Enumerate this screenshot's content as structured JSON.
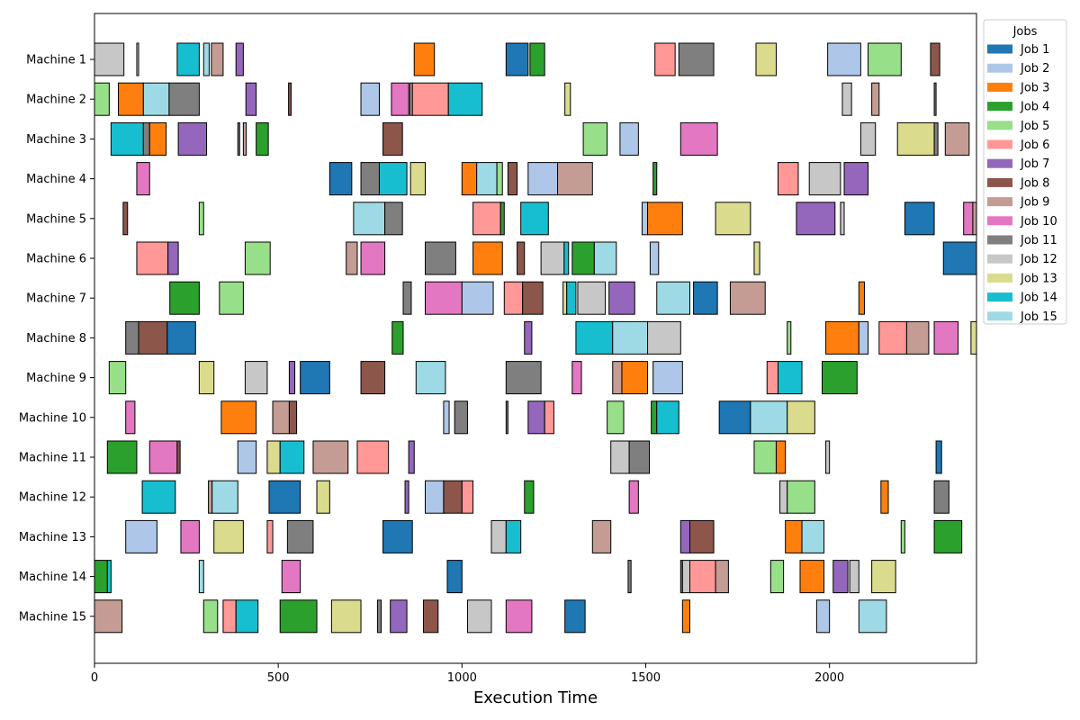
{
  "chart_data": {
    "type": "gantt",
    "xlabel": "Execution Time",
    "ylabel": "",
    "xlim": [
      0,
      2400
    ],
    "xticks": [
      0,
      500,
      1000,
      1500,
      2000
    ],
    "machines": [
      "Machine 1",
      "Machine 2",
      "Machine 3",
      "Machine 4",
      "Machine 5",
      "Machine 6",
      "Machine 7",
      "Machine 8",
      "Machine 9",
      "Machine 10",
      "Machine 11",
      "Machine 12",
      "Machine 13",
      "Machine 14",
      "Machine 15"
    ],
    "legend": {
      "title": "Jobs",
      "placement": "right, top",
      "entries": [
        {
          "job": 1,
          "label": "Job 1",
          "color": "#1f77b4"
        },
        {
          "job": 2,
          "label": "Job 2",
          "color": "#aec7e8"
        },
        {
          "job": 3,
          "label": "Job 3",
          "color": "#ff7f0e"
        },
        {
          "job": 4,
          "label": "Job 4",
          "color": "#2ca02c"
        },
        {
          "job": 5,
          "label": "Job 5",
          "color": "#98df8a"
        },
        {
          "job": 6,
          "label": "Job 6",
          "color": "#ff9896"
        },
        {
          "job": 7,
          "label": "Job 7",
          "color": "#9467bd"
        },
        {
          "job": 8,
          "label": "Job 8",
          "color": "#8c564b"
        },
        {
          "job": 9,
          "label": "Job 9",
          "color": "#c49c94"
        },
        {
          "job": 10,
          "label": "Job 10",
          "color": "#e377c2"
        },
        {
          "job": 11,
          "label": "Job 11",
          "color": "#7f7f7f"
        },
        {
          "job": 12,
          "label": "Job 12",
          "color": "#c7c7c7"
        },
        {
          "job": 13,
          "label": "Job 13",
          "color": "#dbdb8d"
        },
        {
          "job": 14,
          "label": "Job 14",
          "color": "#17becf"
        },
        {
          "job": 15,
          "label": "Job 15",
          "color": "#9edae5"
        }
      ]
    },
    "tasks": [
      [
        [
          12,
          0,
          80
        ],
        [
          12,
          115,
          120
        ],
        [
          14,
          225,
          285
        ],
        [
          15,
          297,
          312
        ],
        [
          9,
          318,
          350
        ],
        [
          7,
          385,
          405
        ],
        [
          3,
          870,
          925
        ],
        [
          1,
          1120,
          1180
        ],
        [
          4,
          1185,
          1225
        ],
        [
          6,
          1525,
          1580
        ],
        [
          11,
          1590,
          1685
        ],
        [
          13,
          1800,
          1855
        ],
        [
          2,
          1995,
          2085
        ],
        [
          5,
          2105,
          2195
        ],
        [
          8,
          2275,
          2300
        ]
      ],
      [
        [
          5,
          0,
          40
        ],
        [
          3,
          65,
          133
        ],
        [
          15,
          133,
          203
        ],
        [
          11,
          203,
          285
        ],
        [
          7,
          412,
          440
        ],
        [
          8,
          528,
          535
        ],
        [
          2,
          725,
          775
        ],
        [
          10,
          808,
          855
        ],
        [
          9,
          858,
          865
        ],
        [
          6,
          865,
          963
        ],
        [
          14,
          963,
          1055
        ],
        [
          13,
          1280,
          1295
        ],
        [
          12,
          2035,
          2060
        ],
        [
          9,
          2115,
          2135
        ],
        [
          11,
          2285,
          2290
        ]
      ],
      [
        [
          14,
          45,
          133
        ],
        [
          11,
          133,
          150
        ],
        [
          3,
          150,
          195
        ],
        [
          7,
          228,
          305
        ],
        [
          11,
          390,
          395
        ],
        [
          9,
          405,
          413
        ],
        [
          4,
          440,
          473
        ],
        [
          8,
          785,
          838
        ],
        [
          5,
          1330,
          1395
        ],
        [
          2,
          1430,
          1480
        ],
        [
          10,
          1595,
          1695
        ],
        [
          12,
          2085,
          2125
        ],
        [
          13,
          2185,
          2285
        ],
        [
          11,
          2285,
          2295
        ],
        [
          9,
          2315,
          2380
        ]
      ],
      [
        [
          10,
          115,
          150
        ],
        [
          1,
          640,
          700
        ],
        [
          11,
          725,
          775
        ],
        [
          14,
          775,
          850
        ],
        [
          13,
          860,
          900
        ],
        [
          3,
          1000,
          1040
        ],
        [
          15,
          1040,
          1095
        ],
        [
          5,
          1095,
          1110
        ],
        [
          8,
          1125,
          1150
        ],
        [
          2,
          1180,
          1260
        ],
        [
          9,
          1260,
          1355
        ],
        [
          4,
          1520,
          1530
        ],
        [
          6,
          1860,
          1915
        ],
        [
          12,
          1945,
          2030
        ],
        [
          7,
          2040,
          2105
        ]
      ],
      [
        [
          8,
          78,
          90
        ],
        [
          5,
          285,
          297
        ],
        [
          15,
          705,
          790
        ],
        [
          11,
          790,
          838
        ],
        [
          6,
          1030,
          1105
        ],
        [
          4,
          1105,
          1115
        ],
        [
          14,
          1160,
          1235
        ],
        [
          2,
          1490,
          1505
        ],
        [
          3,
          1505,
          1600
        ],
        [
          13,
          1690,
          1785
        ],
        [
          7,
          1910,
          2015
        ],
        [
          12,
          2030,
          2040
        ],
        [
          1,
          2205,
          2285
        ],
        [
          10,
          2365,
          2390
        ],
        [
          9,
          2390,
          2400
        ]
      ],
      [
        [
          6,
          115,
          200
        ],
        [
          7,
          200,
          228
        ],
        [
          5,
          410,
          478
        ],
        [
          9,
          685,
          715
        ],
        [
          10,
          725,
          790
        ],
        [
          11,
          900,
          983
        ],
        [
          3,
          1030,
          1110
        ],
        [
          8,
          1150,
          1170
        ],
        [
          12,
          1215,
          1278
        ],
        [
          14,
          1278,
          1290
        ],
        [
          4,
          1300,
          1360
        ],
        [
          15,
          1360,
          1420
        ],
        [
          2,
          1512,
          1535
        ],
        [
          13,
          1795,
          1810
        ],
        [
          1,
          2310,
          2400
        ]
      ],
      [
        [
          4,
          205,
          285
        ],
        [
          5,
          340,
          405
        ],
        [
          11,
          840,
          862
        ],
        [
          10,
          900,
          1000
        ],
        [
          2,
          1000,
          1085
        ],
        [
          6,
          1115,
          1165
        ],
        [
          8,
          1165,
          1220
        ],
        [
          13,
          1275,
          1285
        ],
        [
          14,
          1285,
          1310
        ],
        [
          12,
          1315,
          1390
        ],
        [
          7,
          1400,
          1470
        ],
        [
          15,
          1530,
          1620
        ],
        [
          1,
          1630,
          1695
        ],
        [
          9,
          1730,
          1825
        ],
        [
          3,
          2080,
          2095
        ]
      ],
      [
        [
          11,
          85,
          120
        ],
        [
          8,
          120,
          198
        ],
        [
          1,
          198,
          275
        ],
        [
          4,
          810,
          840
        ],
        [
          7,
          1170,
          1190
        ],
        [
          14,
          1310,
          1410
        ],
        [
          15,
          1410,
          1505
        ],
        [
          12,
          1505,
          1595
        ],
        [
          5,
          1885,
          1895
        ],
        [
          3,
          1990,
          2080
        ],
        [
          2,
          2080,
          2105
        ],
        [
          6,
          2135,
          2210
        ],
        [
          9,
          2210,
          2270
        ],
        [
          10,
          2285,
          2350
        ],
        [
          13,
          2385,
          2400
        ]
      ],
      [
        [
          5,
          40,
          85
        ],
        [
          13,
          285,
          325
        ],
        [
          12,
          410,
          470
        ],
        [
          7,
          530,
          545
        ],
        [
          1,
          560,
          640
        ],
        [
          8,
          725,
          790
        ],
        [
          15,
          875,
          955
        ],
        [
          11,
          1120,
          1215
        ],
        [
          10,
          1300,
          1325
        ],
        [
          9,
          1410,
          1435
        ],
        [
          3,
          1435,
          1505
        ],
        [
          2,
          1520,
          1600
        ],
        [
          6,
          1830,
          1860
        ],
        [
          14,
          1860,
          1925
        ],
        [
          4,
          1980,
          2075
        ]
      ],
      [
        [
          10,
          85,
          110
        ],
        [
          3,
          345,
          440
        ],
        [
          9,
          485,
          530
        ],
        [
          8,
          530,
          550
        ],
        [
          2,
          950,
          965
        ],
        [
          11,
          980,
          1015
        ],
        [
          11,
          1120,
          1125
        ],
        [
          7,
          1180,
          1225
        ],
        [
          6,
          1225,
          1250
        ],
        [
          5,
          1395,
          1440
        ],
        [
          4,
          1515,
          1530
        ],
        [
          14,
          1530,
          1590
        ],
        [
          1,
          1700,
          1785
        ],
        [
          15,
          1785,
          1885
        ],
        [
          13,
          1885,
          1960
        ]
      ],
      [
        [
          4,
          35,
          115
        ],
        [
          10,
          150,
          225
        ],
        [
          8,
          225,
          233
        ],
        [
          2,
          390,
          440
        ],
        [
          13,
          470,
          505
        ],
        [
          14,
          505,
          570
        ],
        [
          9,
          595,
          690
        ],
        [
          6,
          715,
          800
        ],
        [
          7,
          855,
          870
        ],
        [
          12,
          1405,
          1455
        ],
        [
          11,
          1455,
          1510
        ],
        [
          5,
          1795,
          1855
        ],
        [
          3,
          1855,
          1880
        ],
        [
          12,
          1990,
          2000
        ],
        [
          1,
          2290,
          2305
        ]
      ],
      [
        [
          14,
          130,
          220
        ],
        [
          9,
          310,
          320
        ],
        [
          15,
          320,
          390
        ],
        [
          1,
          475,
          560
        ],
        [
          13,
          605,
          640
        ],
        [
          7,
          845,
          855
        ],
        [
          2,
          900,
          950
        ],
        [
          8,
          950,
          1000
        ],
        [
          6,
          1000,
          1030
        ],
        [
          4,
          1170,
          1195
        ],
        [
          10,
          1455,
          1480
        ],
        [
          12,
          1865,
          1885
        ],
        [
          5,
          1885,
          1960
        ],
        [
          3,
          2140,
          2160
        ],
        [
          11,
          2285,
          2325
        ]
      ],
      [
        [
          2,
          85,
          170
        ],
        [
          10,
          235,
          285
        ],
        [
          13,
          325,
          405
        ],
        [
          6,
          470,
          485
        ],
        [
          11,
          525,
          595
        ],
        [
          1,
          785,
          865
        ],
        [
          12,
          1080,
          1120
        ],
        [
          14,
          1120,
          1160
        ],
        [
          9,
          1355,
          1405
        ],
        [
          7,
          1595,
          1620
        ],
        [
          8,
          1620,
          1685
        ],
        [
          3,
          1880,
          1925
        ],
        [
          15,
          1925,
          1985
        ],
        [
          5,
          2195,
          2205
        ],
        [
          4,
          2285,
          2360
        ]
      ],
      [
        [
          4,
          0,
          35
        ],
        [
          14,
          35,
          45
        ],
        [
          15,
          285,
          297
        ],
        [
          10,
          510,
          560
        ],
        [
          1,
          960,
          1000
        ],
        [
          11,
          1452,
          1460
        ],
        [
          11,
          1595,
          1600
        ],
        [
          12,
          1600,
          1620
        ],
        [
          6,
          1620,
          1690
        ],
        [
          9,
          1690,
          1725
        ],
        [
          5,
          1840,
          1875
        ],
        [
          3,
          1920,
          1985
        ],
        [
          7,
          2010,
          2050
        ],
        [
          12,
          2055,
          2080
        ],
        [
          13,
          2115,
          2180
        ]
      ],
      [
        [
          9,
          0,
          75
        ],
        [
          5,
          297,
          335
        ],
        [
          6,
          350,
          385
        ],
        [
          14,
          385,
          445
        ],
        [
          4,
          505,
          605
        ],
        [
          13,
          645,
          725
        ],
        [
          11,
          770,
          780
        ],
        [
          7,
          805,
          850
        ],
        [
          8,
          895,
          935
        ],
        [
          12,
          1015,
          1080
        ],
        [
          10,
          1120,
          1190
        ],
        [
          1,
          1280,
          1335
        ],
        [
          3,
          1600,
          1620
        ],
        [
          2,
          1965,
          2000
        ],
        [
          15,
          2080,
          2155
        ]
      ]
    ]
  }
}
